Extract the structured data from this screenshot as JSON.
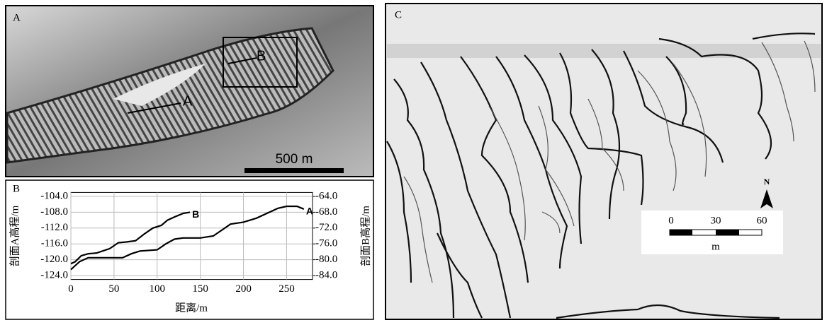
{
  "panel_a": {
    "label": "A",
    "scale": "500 m",
    "profile_labels": [
      "A",
      "B"
    ]
  },
  "chart_data": {
    "type": "line",
    "panel_label": "B",
    "x_label": "距离/m",
    "y_label": "剖面A高程/m",
    "y2_label": "剖面B高程/m",
    "xlim": [
      0,
      280
    ],
    "xticks": [
      0,
      50,
      100,
      150,
      200,
      250
    ],
    "ylim": [
      -125,
      -103
    ],
    "yticks": [
      {
        "value": -104,
        "label": "-104.0"
      },
      {
        "value": -108,
        "label": "-108.0"
      },
      {
        "value": -112,
        "label": "-112.0"
      },
      {
        "value": -116,
        "label": "-116.0"
      },
      {
        "value": -120,
        "label": "-120.0"
      },
      {
        "value": -124,
        "label": "-124.0"
      }
    ],
    "y2lim": [
      -85,
      -63
    ],
    "y2ticks": [
      {
        "value": -64,
        "label": "-64.0"
      },
      {
        "value": -68,
        "label": "-68.0"
      },
      {
        "value": -72,
        "label": "-72.0"
      },
      {
        "value": -76,
        "label": "-76.0"
      },
      {
        "value": -80,
        "label": "-80.0"
      },
      {
        "value": -84,
        "label": "-84.0"
      }
    ],
    "series": [
      {
        "name": "A",
        "color": "#000000",
        "x": [
          0,
          5,
          10,
          20,
          30,
          45,
          60,
          70,
          80,
          100,
          110,
          120,
          130,
          150,
          165,
          175,
          185,
          200,
          215,
          230,
          240,
          250,
          262,
          270
        ],
        "values": [
          -122.5,
          -121.5,
          -120.5,
          -119.5,
          -119.5,
          -119.5,
          -119.5,
          -118.5,
          -117.8,
          -117.5,
          -116,
          -114.8,
          -114.5,
          -114.5,
          -114,
          -112.5,
          -111,
          -110.5,
          -109.5,
          -108,
          -107,
          -106.5,
          -106.5,
          -107.2
        ]
      },
      {
        "name": "B",
        "color": "#000000",
        "axis": "y2",
        "x": [
          0,
          5,
          12,
          20,
          30,
          45,
          55,
          65,
          75,
          85,
          95,
          105,
          112,
          120,
          130,
          138
        ],
        "values": [
          -81,
          -80.5,
          -79,
          -78.5,
          -78.3,
          -77.2,
          -75.7,
          -75.5,
          -75.2,
          -73.5,
          -72,
          -71.3,
          -70,
          -69.2,
          -68.3,
          -68
        ]
      }
    ]
  },
  "panel_c": {
    "label": "C",
    "north": "N",
    "scale_ticks": [
      "0",
      "30",
      "60"
    ],
    "scale_unit": "m"
  }
}
